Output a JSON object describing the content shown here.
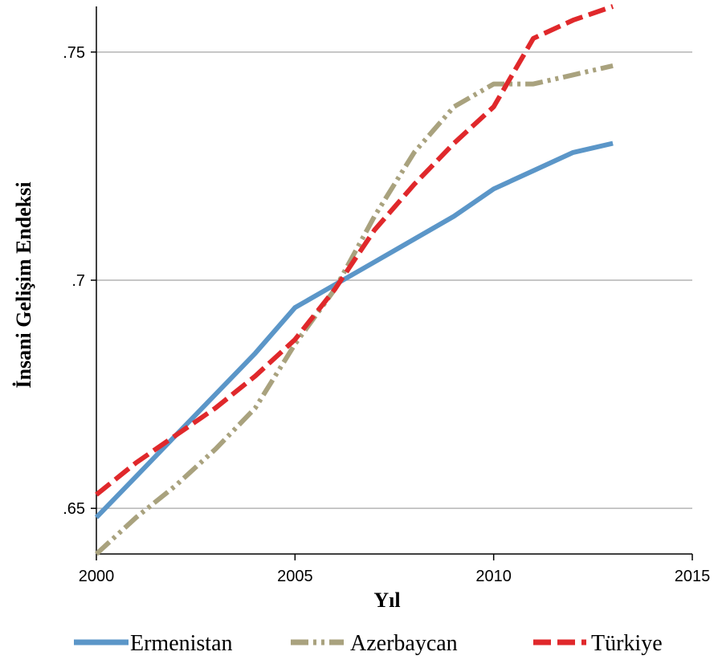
{
  "chart_data": {
    "type": "line",
    "xlabel": "Yıl",
    "ylabel": "İnsani Gelişim Endeksi",
    "xlim": [
      2000,
      2015
    ],
    "ylim": [
      0.64,
      0.76
    ],
    "x_ticks": [
      2000,
      2005,
      2010,
      2015
    ],
    "x_tick_labels": [
      "2000",
      "2005",
      "2010",
      "2015"
    ],
    "y_ticks": [
      0.65,
      0.7,
      0.75
    ],
    "y_tick_labels": [
      ".65",
      ".7",
      ".75"
    ],
    "grid": "horizontal",
    "legend": "bottom",
    "series": [
      {
        "name": "Ermenistan",
        "color": "#5b96c8",
        "style": "solid",
        "x": [
          2000,
          2001,
          2002,
          2003,
          2004,
          2005,
          2006,
          2007,
          2008,
          2009,
          2010,
          2011,
          2012,
          2013
        ],
        "y": [
          0.648,
          0.657,
          0.666,
          0.675,
          0.684,
          0.694,
          0.699,
          0.704,
          0.709,
          0.714,
          0.72,
          0.724,
          0.728,
          0.73
        ]
      },
      {
        "name": "Azerbaycan",
        "color": "#a9a27e",
        "style": "dashdot",
        "x": [
          2000,
          2001,
          2002,
          2003,
          2004,
          2005,
          2006,
          2007,
          2008,
          2009,
          2010,
          2011,
          2012,
          2013
        ],
        "y": [
          0.64,
          0.648,
          0.655,
          0.663,
          0.672,
          0.686,
          0.698,
          0.714,
          0.728,
          0.738,
          0.743,
          0.743,
          0.745,
          0.747
        ]
      },
      {
        "name": "Türkiye",
        "color": "#e0282b",
        "style": "dashed",
        "x": [
          2000,
          2001,
          2002,
          2003,
          2004,
          2005,
          2006,
          2007,
          2008,
          2009,
          2010,
          2011,
          2012,
          2013
        ],
        "y": [
          0.653,
          0.66,
          0.666,
          0.672,
          0.679,
          0.687,
          0.698,
          0.711,
          0.721,
          0.73,
          0.738,
          0.753,
          0.757,
          0.76
        ]
      }
    ]
  }
}
